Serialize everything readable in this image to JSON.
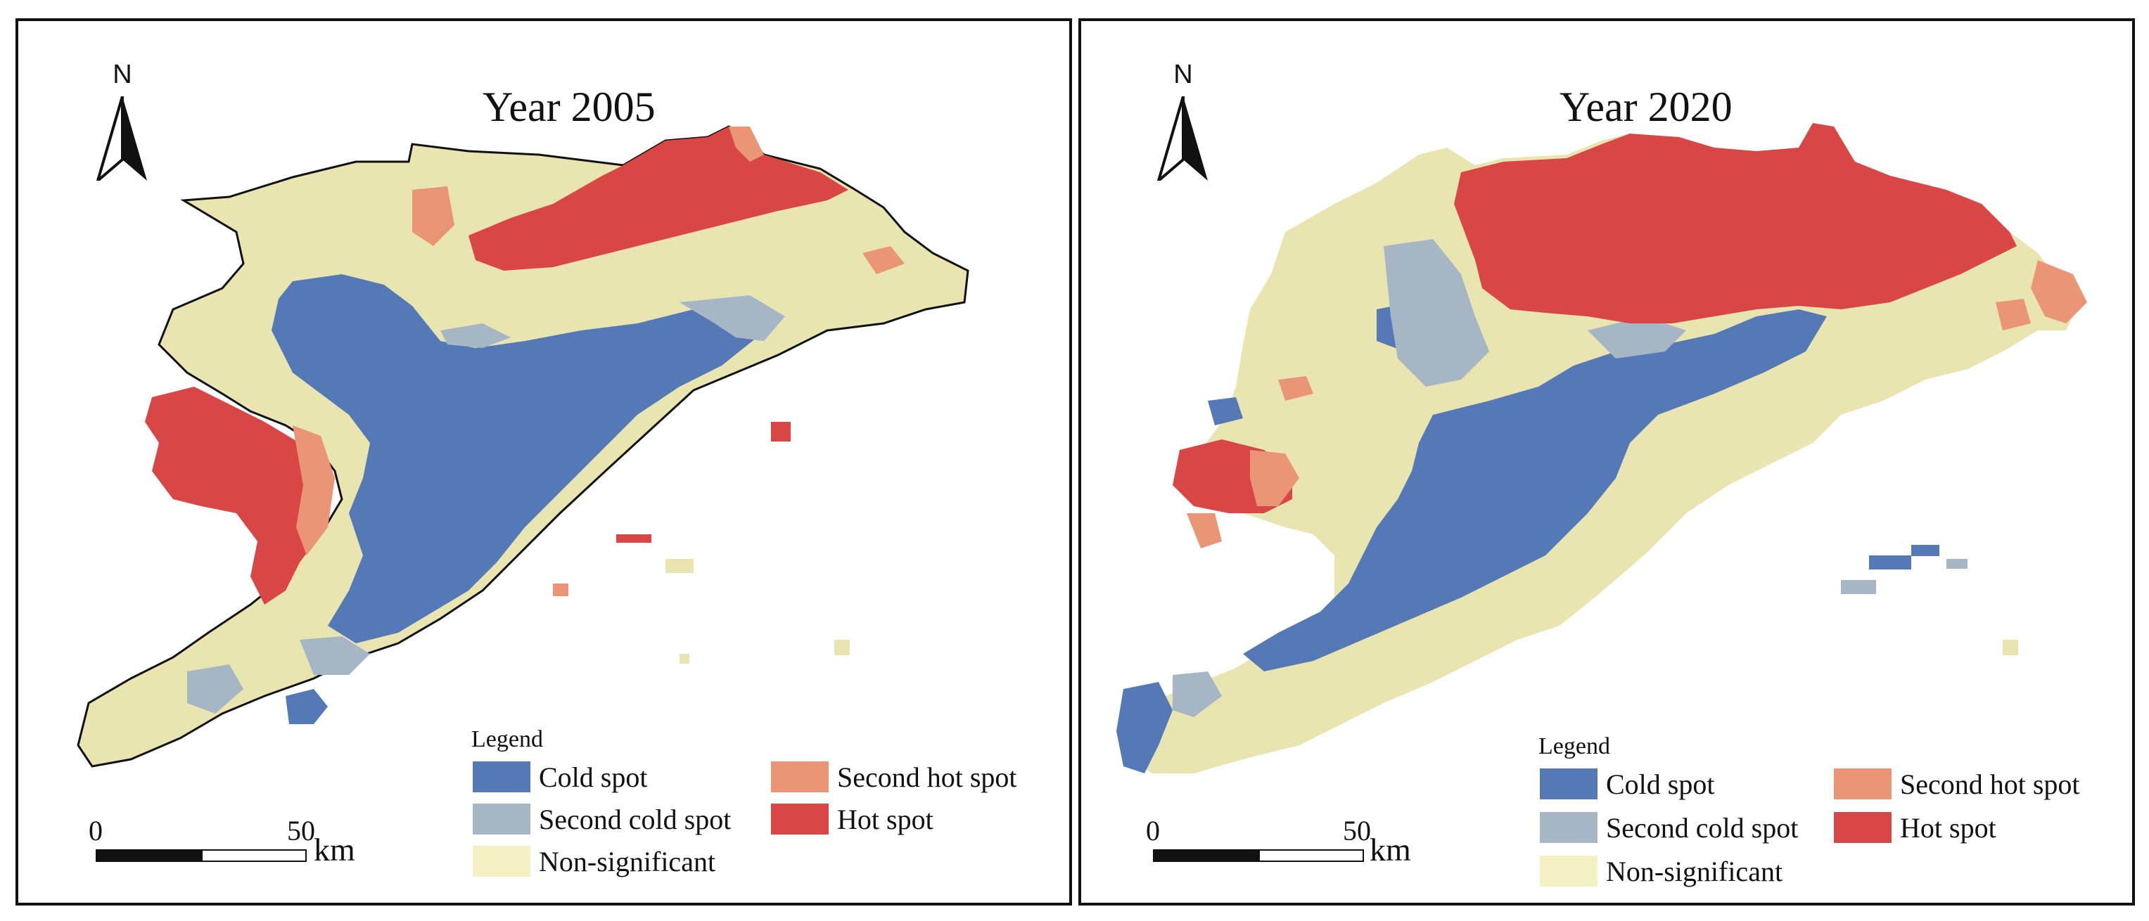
{
  "colors": {
    "cold_spot": "#5579b6",
    "second_cold_spot": "#a6b6c4",
    "non_significant": "#e8e5b1",
    "second_hot_spot": "#ea9576",
    "hot_spot": "#d84745",
    "outline": "#111111"
  },
  "north_arrow": {
    "label": "N",
    "icon": "north-arrow-icon"
  },
  "legend": {
    "title": "Legend",
    "items": [
      {
        "key": "cold_spot",
        "label": "Cold spot"
      },
      {
        "key": "second_cold_spot",
        "label": "Second cold spot"
      },
      {
        "key": "non_significant",
        "label": "Non-significant"
      },
      {
        "key": "second_hot_spot",
        "label": "Second hot spot"
      },
      {
        "key": "hot_spot",
        "label": "Hot spot"
      }
    ]
  },
  "scale_bar": {
    "start": "0",
    "mid": "50",
    "unit": "km"
  },
  "panels": [
    {
      "title": "Year 2005"
    },
    {
      "title": "Year 2020"
    }
  ]
}
